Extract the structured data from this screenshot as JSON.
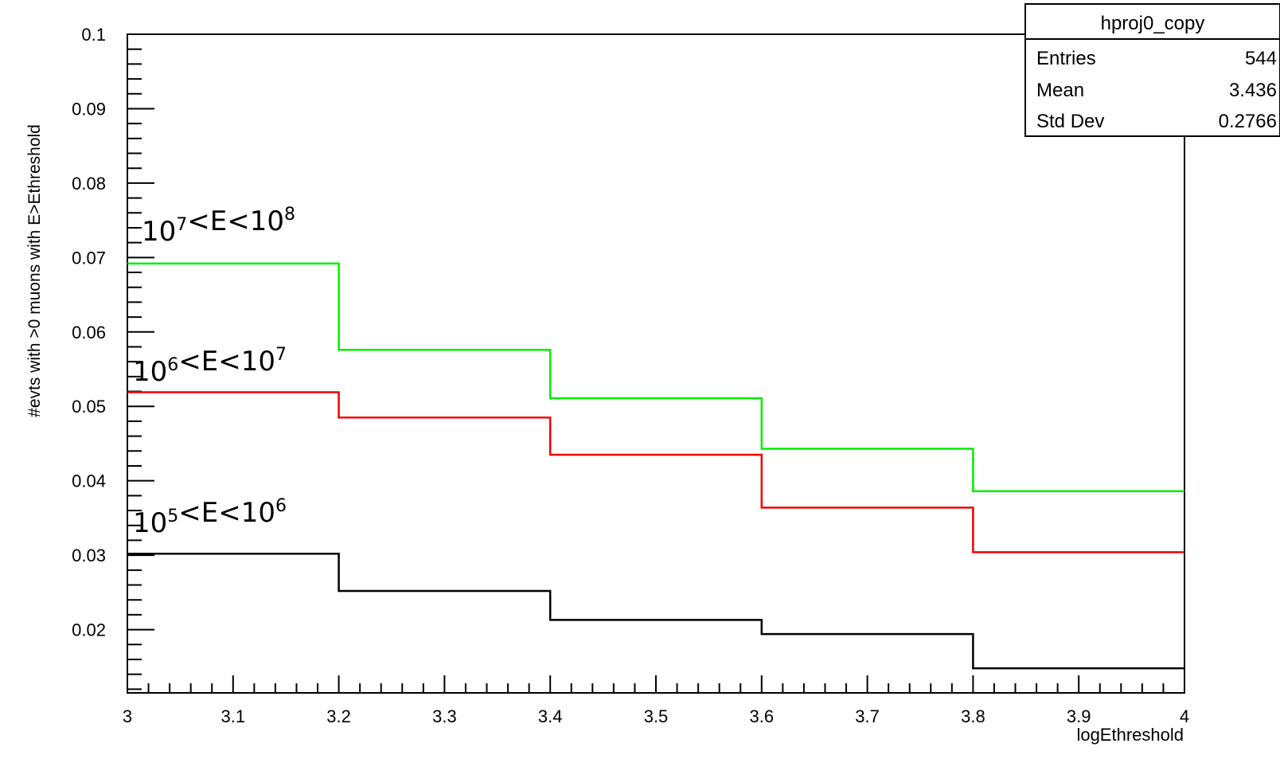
{
  "chart_data": {
    "type": "line",
    "title": "",
    "xlabel": "logEthreshold",
    "ylabel": "#evts with >0 muons with E>Ethreshold",
    "xlim": [
      3,
      4
    ],
    "ylim": [
      0.0115,
      0.1
    ],
    "x_ticks": [
      "3",
      "3.1",
      "3.2",
      "3.3",
      "3.4",
      "3.5",
      "3.6",
      "3.7",
      "3.8",
      "3.9",
      "4"
    ],
    "y_ticks": [
      "0.02",
      "0.03",
      "0.04",
      "0.05",
      "0.06",
      "0.07",
      "0.08",
      "0.09",
      "0.1"
    ],
    "grid": false,
    "step": true,
    "bin_edges": [
      3,
      3.2,
      3.4,
      3.6,
      3.8,
      4
    ],
    "series": [
      {
        "name": "10^7<E<10^8",
        "color": "#00ee00",
        "values": [
          0.0692,
          0.0576,
          0.0511,
          0.0443,
          0.0386
        ]
      },
      {
        "name": "10^6<E<10^7",
        "color": "#ee0000",
        "values": [
          0.0519,
          0.0485,
          0.0435,
          0.0364,
          0.0304
        ]
      },
      {
        "name": "10^5<E<10^6",
        "color": "#000000",
        "values": [
          0.0302,
          0.0252,
          0.0213,
          0.0194,
          0.0148
        ]
      }
    ],
    "annotations": [
      {
        "base": "10",
        "exp1": "7",
        "mid": "<E<",
        "base2": "10",
        "exp2": "8"
      },
      {
        "base": "10",
        "exp1": "6",
        "mid": "<E<",
        "base2": "10",
        "exp2": "7"
      },
      {
        "base": "10",
        "exp1": "5",
        "mid": "<E<",
        "base2": "10",
        "exp2": "6"
      }
    ],
    "stats_box": {
      "title": "hproj0_copy",
      "rows": [
        {
          "label": "Entries",
          "value": "544"
        },
        {
          "label": "Mean",
          "value": "3.436"
        },
        {
          "label": "Std Dev",
          "value": "0.2766"
        }
      ]
    }
  }
}
